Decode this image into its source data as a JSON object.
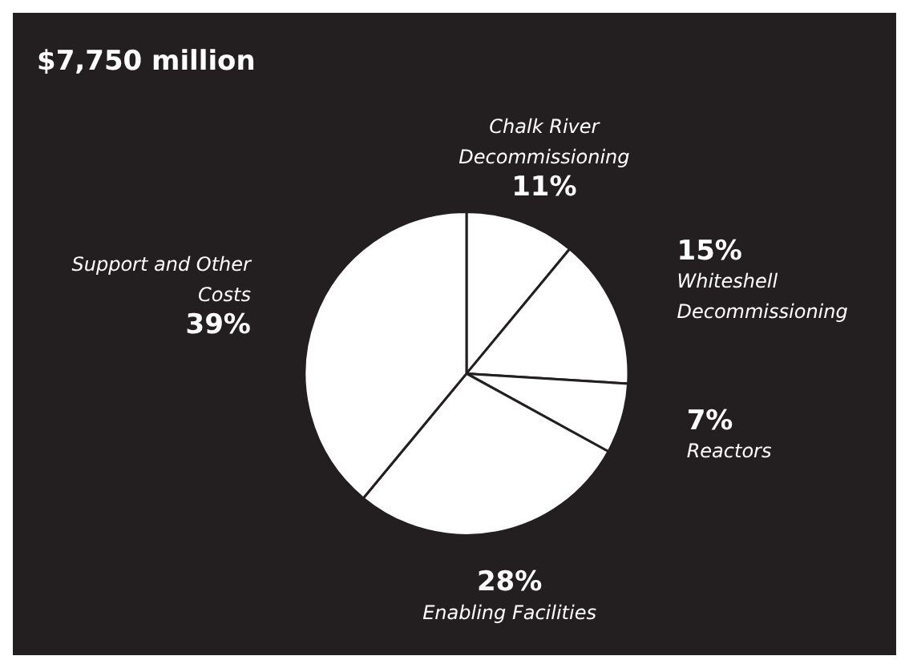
{
  "chart_data": {
    "type": "pie",
    "title": "$7,750 million",
    "categories": [
      "Chalk River Decommissioning",
      "Whiteshell Decommissioning",
      "Reactors",
      "Enabling Facilities",
      "Support and Other Costs"
    ],
    "values": [
      11,
      15,
      7,
      28,
      39
    ],
    "value_labels": [
      "11%",
      "15%",
      "7%",
      "28%",
      "39%"
    ],
    "colors": [
      "#ffffff",
      "#ffffff",
      "#ffffff",
      "#ffffff",
      "#ffffff"
    ]
  }
}
